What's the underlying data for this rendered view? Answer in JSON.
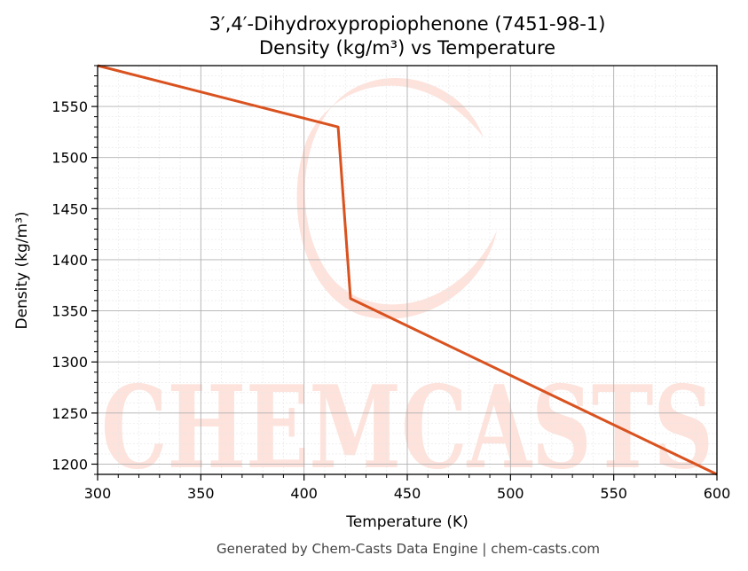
{
  "chart_data": {
    "type": "line",
    "title_line1": "3′,4′-Dihydroxypropiophenone (7451-98-1)",
    "title_line2": "Density (kg/m³) vs Temperature",
    "xlabel": "Temperature (K)",
    "ylabel": "Density (kg/m³)",
    "xlim": [
      300,
      600
    ],
    "ylim": [
      1190,
      1590
    ],
    "xticks": [
      300,
      350,
      400,
      450,
      500,
      550,
      600
    ],
    "yticks": [
      1200,
      1250,
      1300,
      1350,
      1400,
      1450,
      1500,
      1550
    ],
    "grid": true,
    "series": [
      {
        "color": "#d9521f",
        "x": [
          300,
          416.5,
          422.5,
          600
        ],
        "y": [
          1590,
          1530,
          1362,
          1190
        ]
      }
    ]
  },
  "footer": "Generated by Chem-Casts Data Engine | chem-casts.com",
  "watermark": "CHEMCASTS"
}
